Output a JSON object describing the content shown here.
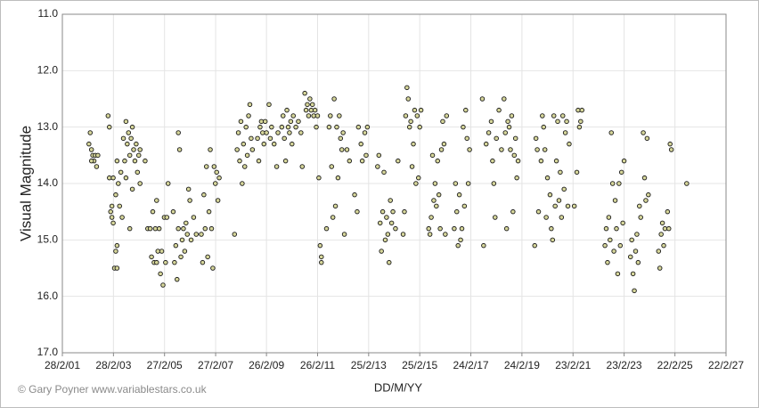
{
  "chart_data": {
    "type": "scatter",
    "ylabel": "Visual Magnitude",
    "xlabel": "DD/M/YY",
    "credit": "© Gary Poyner www.variablestars.co.uk",
    "y_inverted": true,
    "grid": true,
    "marker_color": "#d6d69a",
    "marker_edge": "#1a1a1a",
    "ylim": [
      11,
      17
    ],
    "yticks": [
      {
        "value": 11,
        "label": "11.0"
      },
      {
        "value": 12,
        "label": "12.0"
      },
      {
        "value": 13,
        "label": "13.0"
      },
      {
        "value": 14,
        "label": "14.0"
      },
      {
        "value": 15,
        "label": "15.0"
      },
      {
        "value": 16,
        "label": "16.0"
      },
      {
        "value": 17,
        "label": "17.0"
      }
    ],
    "xlim": [
      2001.16,
      2027.14
    ],
    "xticks": [
      {
        "value": 2001.16,
        "label": "28/2/01"
      },
      {
        "value": 2003.16,
        "label": "28/2/03"
      },
      {
        "value": 2005.16,
        "label": "27/2/05"
      },
      {
        "value": 2007.16,
        "label": "27/2/07"
      },
      {
        "value": 2009.15,
        "label": "26/2/09"
      },
      {
        "value": 2011.15,
        "label": "26/2/11"
      },
      {
        "value": 2013.15,
        "label": "25/2/13"
      },
      {
        "value": 2015.15,
        "label": "25/2/15"
      },
      {
        "value": 2017.15,
        "label": "24/2/17"
      },
      {
        "value": 2019.15,
        "label": "24/2/19"
      },
      {
        "value": 2021.15,
        "label": "23/2/21"
      },
      {
        "value": 2023.15,
        "label": "23/2/23"
      },
      {
        "value": 2025.14,
        "label": "22/2/25"
      },
      {
        "value": 2027.14,
        "label": "22/2/27"
      }
    ],
    "x": [
      2002.2,
      2002.25,
      2002.3,
      2002.35,
      2002.4,
      2002.45,
      2002.5,
      2002.3,
      2002.55,
      2002.95,
      2003.0,
      2003.0,
      2003.05,
      2003.1,
      2003.1,
      2003.15,
      2003.15,
      2003.2,
      2003.25,
      2003.25,
      2003.3,
      2003.3,
      2003.3,
      2003.35,
      2003.4,
      2003.45,
      2003.5,
      2003.55,
      2003.6,
      2003.65,
      2003.65,
      2003.7,
      2003.75,
      2003.8,
      2003.8,
      2003.85,
      2003.9,
      2003.9,
      2003.95,
      2004.0,
      2004.05,
      2004.1,
      2004.15,
      2004.2,
      2004.2,
      2004.4,
      2004.5,
      2004.6,
      2004.65,
      2004.7,
      2004.75,
      2004.8,
      2004.85,
      2004.85,
      2004.9,
      2004.95,
      2005.0,
      2005.05,
      2005.1,
      2005.15,
      2005.2,
      2005.25,
      2005.3,
      2005.5,
      2005.55,
      2005.6,
      2005.65,
      2005.7,
      2005.7,
      2005.75,
      2005.8,
      2005.85,
      2005.9,
      2005.95,
      2006.0,
      2006.05,
      2006.1,
      2006.15,
      2006.2,
      2006.3,
      2006.4,
      2006.6,
      2006.65,
      2006.7,
      2006.75,
      2006.8,
      2006.85,
      2006.9,
      2006.95,
      2007.0,
      2007.05,
      2007.1,
      2007.15,
      2007.2,
      2007.25,
      2007.3,
      2007.9,
      2008.0,
      2008.05,
      2008.1,
      2008.15,
      2008.2,
      2008.25,
      2008.3,
      2008.35,
      2008.4,
      2008.45,
      2008.5,
      2008.55,
      2008.6,
      2008.8,
      2008.85,
      2008.9,
      2008.95,
      2009.0,
      2009.05,
      2009.1,
      2009.15,
      2009.25,
      2009.3,
      2009.35,
      2009.45,
      2009.55,
      2009.6,
      2009.75,
      2009.8,
      2009.85,
      2009.9,
      2009.95,
      2010.0,
      2010.05,
      2010.1,
      2010.15,
      2010.2,
      2010.3,
      2010.4,
      2010.5,
      2010.55,
      2010.65,
      2010.7,
      2010.75,
      2010.8,
      2010.85,
      2010.9,
      2010.95,
      2011.0,
      2011.05,
      2011.1,
      2011.15,
      2011.2,
      2011.25,
      2011.3,
      2011.3,
      2011.5,
      2011.6,
      2011.65,
      2011.7,
      2011.75,
      2011.8,
      2011.85,
      2011.9,
      2011.95,
      2012.0,
      2012.05,
      2012.1,
      2012.15,
      2012.2,
      2012.3,
      2012.4,
      2012.6,
      2012.7,
      2012.75,
      2012.85,
      2012.9,
      2013.0,
      2013.05,
      2013.1,
      2013.5,
      2013.55,
      2013.6,
      2013.65,
      2013.7,
      2013.75,
      2013.8,
      2013.85,
      2013.9,
      2013.95,
      2014.0,
      2014.05,
      2014.1,
      2014.2,
      2014.3,
      2014.5,
      2014.55,
      2014.6,
      2014.65,
      2014.7,
      2014.75,
      2014.8,
      2014.85,
      2014.9,
      2014.95,
      2015.0,
      2015.05,
      2015.1,
      2015.15,
      2015.2,
      2015.5,
      2015.55,
      2015.6,
      2015.65,
      2015.7,
      2015.75,
      2015.8,
      2015.85,
      2015.9,
      2015.95,
      2016.0,
      2016.05,
      2016.1,
      2016.15,
      2016.2,
      2016.5,
      2016.55,
      2016.6,
      2016.65,
      2016.7,
      2016.75,
      2016.8,
      2016.85,
      2016.9,
      2016.95,
      2017.0,
      2017.05,
      2017.1,
      2017.6,
      2017.65,
      2017.75,
      2017.85,
      2017.95,
      2018.0,
      2018.05,
      2018.1,
      2018.15,
      2018.25,
      2018.35,
      2018.45,
      2018.5,
      2018.55,
      2018.6,
      2018.65,
      2018.7,
      2018.75,
      2018.8,
      2018.85,
      2018.9,
      2018.95,
      2019.0,
      2019.65,
      2019.7,
      2019.75,
      2019.8,
      2019.9,
      2019.95,
      2020.0,
      2020.05,
      2020.1,
      2020.15,
      2020.25,
      2020.3,
      2020.35,
      2020.4,
      2020.45,
      2020.5,
      2020.55,
      2020.6,
      2020.65,
      2020.7,
      2020.75,
      2020.8,
      2020.85,
      2020.9,
      2020.95,
      2021.0,
      2021.2,
      2021.3,
      2021.35,
      2021.4,
      2021.45,
      2021.5,
      2022.4,
      2022.45,
      2022.5,
      2022.55,
      2022.6,
      2022.65,
      2022.7,
      2022.75,
      2022.8,
      2022.85,
      2022.9,
      2022.95,
      2023.0,
      2023.05,
      2023.1,
      2023.15,
      2023.4,
      2023.45,
      2023.5,
      2023.55,
      2023.6,
      2023.65,
      2023.7,
      2023.75,
      2023.8,
      2023.9,
      2023.95,
      2024.0,
      2024.05,
      2024.1,
      2024.5,
      2024.55,
      2024.6,
      2024.65,
      2024.7,
      2024.75,
      2024.85,
      2024.9,
      2024.95,
      2025.0,
      2025.6
    ],
    "values": [
      13.3,
      13.1,
      13.4,
      13.5,
      13.6,
      13.5,
      13.7,
      13.6,
      13.5,
      12.8,
      13.0,
      13.9,
      14.5,
      14.4,
      14.6,
      13.9,
      14.7,
      15.5,
      15.2,
      14.2,
      13.6,
      15.1,
      15.5,
      14.0,
      14.4,
      13.8,
      14.6,
      13.2,
      13.6,
      12.9,
      13.9,
      13.3,
      13.1,
      13.5,
      14.8,
      13.2,
      13.0,
      14.1,
      13.4,
      13.6,
      13.3,
      13.8,
      13.5,
      13.4,
      14.0,
      13.6,
      14.8,
      14.8,
      15.3,
      14.5,
      15.4,
      14.8,
      14.3,
      15.4,
      15.2,
      14.8,
      15.6,
      15.2,
      15.8,
      14.6,
      15.4,
      14.6,
      14.0,
      14.5,
      15.4,
      15.1,
      15.7,
      13.1,
      14.8,
      13.4,
      15.3,
      15.0,
      14.8,
      15.2,
      14.7,
      14.9,
      14.1,
      14.3,
      15.0,
      14.6,
      14.9,
      14.9,
      15.4,
      14.2,
      14.8,
      13.7,
      15.3,
      14.5,
      13.4,
      14.8,
      15.5,
      13.7,
      14.0,
      13.8,
      14.3,
      13.9,
      14.9,
      13.4,
      13.1,
      13.6,
      12.9,
      14.0,
      13.3,
      13.7,
      13.0,
      13.5,
      12.8,
      12.6,
      13.2,
      13.4,
      13.2,
      13.6,
      13.0,
      12.9,
      13.1,
      13.3,
      12.9,
      13.1,
      12.6,
      13.2,
      13.0,
      13.3,
      13.7,
      13.1,
      13.0,
      12.8,
      13.2,
      13.6,
      12.7,
      13.0,
      13.1,
      12.9,
      13.3,
      12.8,
      13.0,
      12.9,
      13.1,
      13.7,
      12.4,
      12.7,
      12.6,
      12.8,
      12.5,
      12.7,
      12.6,
      12.8,
      12.7,
      13.0,
      12.8,
      13.9,
      15.1,
      15.4,
      15.3,
      14.8,
      13.0,
      12.8,
      13.7,
      14.6,
      12.5,
      14.4,
      13.0,
      13.9,
      12.8,
      13.2,
      13.4,
      13.1,
      14.9,
      13.4,
      13.6,
      14.2,
      14.5,
      13.0,
      13.3,
      13.6,
      13.1,
      13.5,
      13.0,
      13.7,
      13.5,
      14.7,
      15.2,
      14.5,
      13.8,
      15.0,
      14.6,
      14.9,
      15.4,
      14.3,
      14.7,
      14.5,
      14.8,
      13.6,
      14.9,
      14.5,
      12.8,
      12.3,
      12.5,
      13.0,
      12.9,
      13.7,
      13.3,
      12.7,
      14.0,
      12.8,
      13.9,
      13.0,
      12.7,
      14.8,
      14.9,
      14.6,
      13.5,
      14.3,
      14.0,
      14.4,
      13.6,
      14.2,
      14.8,
      13.4,
      12.9,
      13.3,
      14.9,
      12.8,
      14.8,
      14.0,
      14.5,
      15.1,
      14.2,
      15.0,
      14.8,
      13.0,
      14.4,
      12.7,
      13.2,
      14.0,
      13.4,
      12.5,
      15.1,
      13.3,
      13.1,
      12.9,
      13.6,
      14.0,
      14.6,
      13.2,
      12.7,
      13.4,
      12.5,
      13.1,
      14.8,
      12.9,
      13.0,
      13.4,
      12.8,
      14.5,
      13.5,
      13.2,
      13.9,
      13.6,
      15.1,
      13.2,
      13.4,
      14.5,
      13.6,
      12.8,
      13.0,
      13.4,
      14.6,
      13.9,
      14.2,
      14.8,
      15.0,
      12.8,
      14.4,
      13.6,
      12.9,
      14.3,
      13.8,
      14.6,
      12.8,
      14.1,
      13.1,
      12.9,
      14.4,
      13.3,
      14.4,
      13.8,
      12.7,
      13.0,
      12.9,
      12.7,
      15.1,
      14.8,
      15.4,
      14.6,
      15.0,
      13.1,
      14.0,
      15.2,
      14.3,
      14.8,
      15.6,
      14.0,
      15.1,
      13.8,
      14.7,
      13.6,
      15.3,
      15.0,
      15.6,
      15.9,
      15.2,
      14.9,
      15.4,
      14.4,
      14.6,
      13.1,
      13.9,
      14.3,
      13.2,
      14.2,
      15.2,
      15.5,
      14.9,
      14.7,
      15.1,
      14.8,
      14.5,
      14.8,
      13.3,
      13.4,
      14.0
    ]
  }
}
